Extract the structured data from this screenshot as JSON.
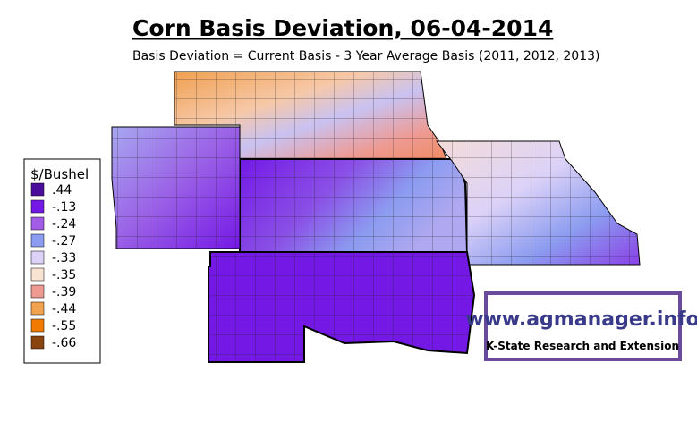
{
  "title": "Corn Basis Deviation, 06-04-2014",
  "subtitle": "Basis Deviation = Current Basis - 3 Year Average Basis (2011, 2012, 2013)",
  "legend": {
    "title": "$/Bushel",
    "items": [
      {
        "label": ".44",
        "color": "#4a0c9a"
      },
      {
        "label": "-.13",
        "color": "#7418e6"
      },
      {
        "label": "-.24",
        "color": "#a25ce6"
      },
      {
        "label": "-.27",
        "color": "#8c9cf0"
      },
      {
        "label": "-.33",
        "color": "#dcd2f8"
      },
      {
        "label": "-.35",
        "color": "#f8e2d2"
      },
      {
        "label": "-.39",
        "color": "#ee9a92"
      },
      {
        "label": "-.44",
        "color": "#f0a24e"
      },
      {
        "label": "-.55",
        "color": "#f07a02"
      },
      {
        "label": "-.66",
        "color": "#8a4410"
      }
    ]
  },
  "logo": {
    "url": "www.agmanager.info",
    "org": "K-State Research and Extension"
  }
}
